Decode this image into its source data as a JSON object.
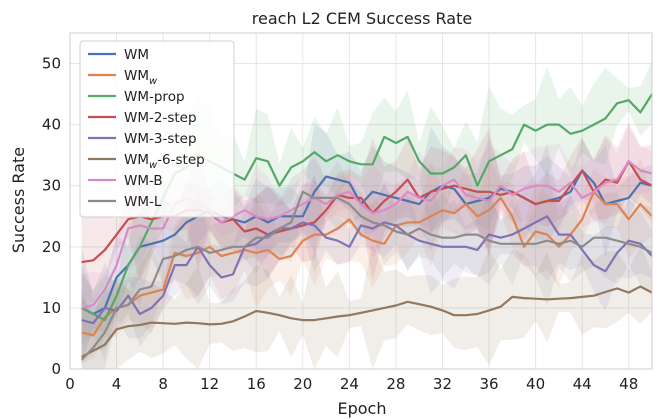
{
  "chart_data": {
    "type": "line",
    "title": "reach L2 CEM Success Rate",
    "xlabel": "Epoch",
    "ylabel": "Success Rate",
    "xlim": [
      0,
      50
    ],
    "ylim": [
      0,
      55
    ],
    "xticks": [
      0,
      4,
      8,
      12,
      16,
      20,
      24,
      28,
      32,
      36,
      40,
      44,
      48
    ],
    "yticks": [
      0,
      10,
      20,
      30,
      40,
      50
    ],
    "grid": true,
    "legend_position": "top-left",
    "x": [
      1,
      2,
      3,
      4,
      5,
      6,
      7,
      8,
      9,
      10,
      11,
      12,
      13,
      14,
      15,
      16,
      17,
      18,
      19,
      20,
      21,
      22,
      23,
      24,
      25,
      26,
      27,
      28,
      29,
      30,
      31,
      32,
      33,
      34,
      35,
      36,
      37,
      38,
      39,
      40,
      41,
      42,
      43,
      44,
      45,
      46,
      47,
      48,
      49,
      50
    ],
    "series": [
      {
        "name": "WM",
        "subscript": "",
        "color": "#4c72b0",
        "values": [
          10,
          9,
          10,
          15,
          17,
          20,
          20.5,
          21,
          22,
          24,
          25,
          26,
          25,
          24.5,
          24,
          25,
          24,
          25,
          25,
          25,
          29,
          31.5,
          31,
          30.5,
          27,
          29,
          28.5,
          28,
          27.5,
          27,
          29,
          30,
          29.5,
          27,
          27.5,
          28,
          29.5,
          29,
          28,
          27,
          27.5,
          28,
          29,
          32.5,
          30.5,
          27,
          27.5,
          28,
          30.5,
          30
        ]
      },
      {
        "name": "WM",
        "subscript": "w",
        "color": "#dd8452",
        "values": [
          6,
          5.5,
          8.5,
          10,
          10.5,
          12,
          12.5,
          13,
          19,
          18.5,
          19,
          20,
          18.5,
          19,
          19.5,
          19,
          19.5,
          18,
          18.5,
          21,
          22,
          22,
          23,
          24.5,
          22,
          21,
          20.5,
          23.5,
          24,
          24,
          25,
          26,
          25.5,
          27,
          25,
          26,
          28,
          25,
          20,
          22.5,
          22,
          20,
          22,
          24.5,
          29,
          27,
          27,
          24.5,
          27,
          25
        ]
      },
      {
        "name": "WM-prop",
        "subscript": "",
        "color": "#55a868",
        "values": [
          10,
          9,
          8,
          12,
          17,
          20,
          24,
          28,
          32,
          33,
          35,
          34,
          33,
          32,
          31,
          34.5,
          34,
          30,
          33,
          34,
          35.5,
          34,
          35,
          34,
          33.5,
          33.5,
          38,
          37,
          38,
          34,
          32,
          32,
          33,
          35,
          30,
          34,
          35,
          36,
          40,
          39,
          40,
          40,
          38.5,
          39,
          40,
          41,
          43.5,
          44,
          42,
          45
        ]
      },
      {
        "name": "WM-2-step",
        "subscript": "",
        "color": "#c44e52",
        "values": [
          17.5,
          17.8,
          19.5,
          22,
          24.5,
          25,
          24.5,
          25,
          25,
          26,
          26,
          25.5,
          24,
          24.5,
          22.5,
          23,
          22,
          22.5,
          23,
          23.5,
          24,
          26,
          28.5,
          28,
          28,
          25.5,
          27.5,
          29,
          31,
          28,
          29,
          29.5,
          30,
          29.5,
          29,
          29,
          28.5,
          29,
          28,
          27,
          27.5,
          27.5,
          30,
          32.5,
          29,
          31,
          30.5,
          34,
          31,
          30
        ]
      },
      {
        "name": "WM-3-step",
        "subscript": "",
        "color": "#8172b3",
        "values": [
          8,
          7.5,
          10,
          9.5,
          12,
          9,
          10,
          12,
          17,
          17,
          20,
          17,
          15,
          15.5,
          20,
          20.5,
          22,
          23,
          23,
          24,
          23.5,
          21.5,
          21,
          20,
          23.5,
          23,
          24,
          23.5,
          22,
          21,
          20.5,
          20,
          20,
          20,
          19.5,
          22,
          21.5,
          22,
          23,
          24,
          25,
          22,
          22,
          19.5,
          17,
          16,
          19,
          21,
          20.5,
          18.5
        ]
      },
      {
        "name": "WM",
        "subscript": "w",
        "suffix": "-6-step",
        "color": "#937860",
        "values": [
          2,
          3,
          4,
          6.5,
          7,
          7.2,
          7.6,
          7.5,
          7.4,
          7.6,
          7.5,
          7.3,
          7.4,
          7.8,
          8.6,
          9.5,
          9.2,
          8.8,
          8.3,
          8,
          8,
          8.3,
          8.6,
          8.8,
          9.2,
          9.6,
          10,
          10.4,
          11,
          10.6,
          10.2,
          9.6,
          8.8,
          8.8,
          9,
          9.6,
          10.2,
          11.8,
          11.6,
          11.5,
          11.4,
          11.5,
          11.6,
          11.8,
          12,
          12.6,
          13.2,
          12.5,
          13.5,
          12.5
        ]
      },
      {
        "name": "WM-B",
        "subscript": "",
        "color": "#da8bc3",
        "values": [
          10,
          10.5,
          13,
          17,
          23,
          23.5,
          23,
          23,
          27,
          28,
          27,
          26,
          24,
          25,
          26,
          25,
          24.5,
          25,
          26,
          27,
          28,
          27,
          28.5,
          29,
          27,
          25.5,
          26,
          27,
          29,
          28,
          27.5,
          30,
          31,
          28.5,
          28,
          27.5,
          30,
          28.5,
          29.5,
          30,
          30,
          29,
          30.5,
          28,
          29,
          30.5,
          31,
          34,
          32.5,
          32
        ]
      },
      {
        "name": "WM-L",
        "subscript": "",
        "color": "#8c8c8c",
        "values": [
          1.5,
          3.5,
          6,
          10,
          10.5,
          13,
          13.5,
          18,
          18.5,
          19.5,
          20,
          19,
          19.5,
          20,
          20,
          21.5,
          21.5,
          23,
          24,
          29,
          28,
          28,
          28,
          27,
          25,
          24,
          23.5,
          22.5,
          22,
          23,
          22,
          21.5,
          21.5,
          22,
          22,
          21,
          20.5,
          20.5,
          20.5,
          20.5,
          21,
          20.5,
          21,
          20,
          21.5,
          21.5,
          21,
          20.5,
          20,
          19
        ]
      }
    ]
  }
}
